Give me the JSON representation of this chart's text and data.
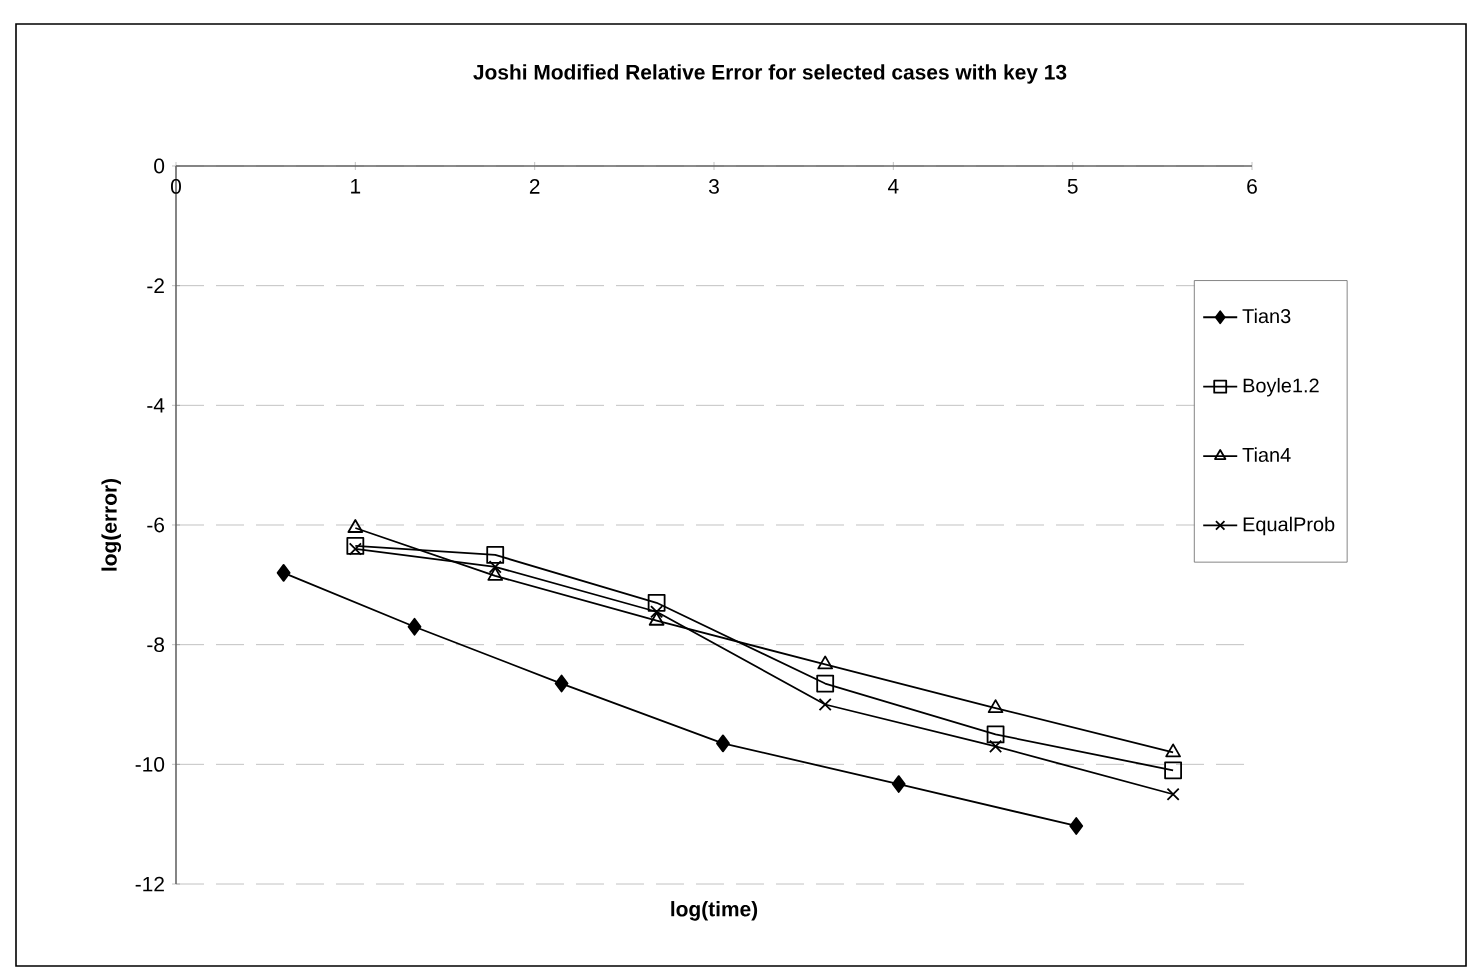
{
  "chart_data": {
    "type": "line",
    "title": "Joshi Modified Relative Error for selected cases with key 13",
    "xlabel": "log(time)",
    "ylabel": "log(error)",
    "xlim": [
      0,
      6
    ],
    "ylim": [
      -12,
      0
    ],
    "xticks": [
      0,
      1,
      2,
      3,
      4,
      5,
      6
    ],
    "yticks": [
      -12,
      -10,
      -8,
      -6,
      -4,
      -2,
      0
    ],
    "grid": "y",
    "legend": "right",
    "line_style": "solid",
    "series": [
      {
        "name": "Tian3",
        "color": "#000000",
        "marker": "diamond",
        "x": [
          0.6,
          1.33,
          2.15,
          3.05,
          4.03,
          5.02
        ],
        "values": [
          -6.8,
          -7.7,
          -8.65,
          -9.65,
          -10.33,
          -11.03
        ]
      },
      {
        "name": "Boyle1.2",
        "color": "#000000",
        "marker": "square",
        "x": [
          1.0,
          1.78,
          2.68,
          3.62,
          4.57,
          5.56
        ],
        "values": [
          -6.35,
          -6.5,
          -7.3,
          -8.65,
          -9.5,
          -10.1
        ]
      },
      {
        "name": "Tian4",
        "color": "#000000",
        "marker": "triangle",
        "x": [
          1.0,
          1.78,
          2.68,
          3.62,
          4.57,
          5.56
        ],
        "values": [
          -6.05,
          -6.85,
          -7.6,
          -8.33,
          -9.06,
          -9.8
        ]
      },
      {
        "name": "EqualProb",
        "color": "#000000",
        "marker": "cross",
        "x": [
          1.0,
          1.78,
          2.68,
          3.62,
          4.57,
          5.56
        ],
        "values": [
          -6.4,
          -6.7,
          -7.45,
          -9.0,
          -9.7,
          -10.5
        ]
      }
    ]
  }
}
